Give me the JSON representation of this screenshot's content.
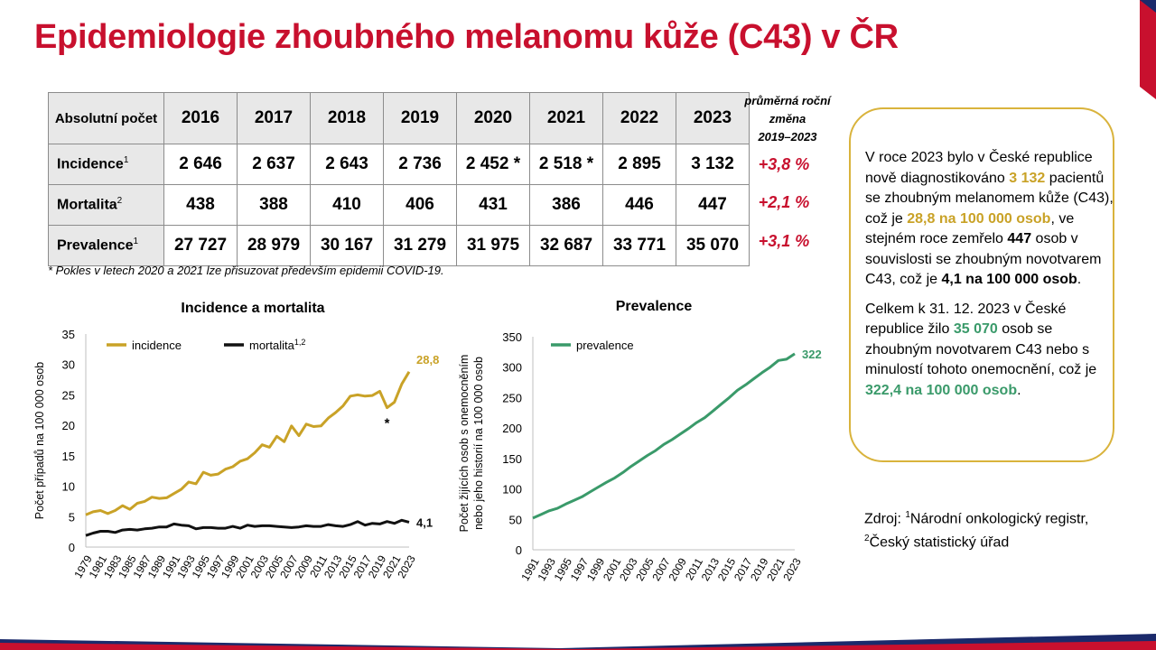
{
  "title": "Epidemiologie zhoubného melanomu kůže (C43) v ČR",
  "table": {
    "corner_label": "Absolutní počet",
    "years": [
      "2016",
      "2017",
      "2018",
      "2019",
      "2020",
      "2021",
      "2022",
      "2023"
    ],
    "rows": [
      {
        "label": "Incidence",
        "sup": "1",
        "values": [
          "2 646",
          "2 637",
          "2 643",
          "2 736",
          "2 452 *",
          "2 518 *",
          "2 895",
          "3 132"
        ]
      },
      {
        "label": "Mortalita",
        "sup": "2",
        "values": [
          "438",
          "388",
          "410",
          "406",
          "431",
          "386",
          "446",
          "447"
        ]
      },
      {
        "label": "Prevalence",
        "sup": "1",
        "values": [
          "27 727",
          "28 979",
          "30 167",
          "31 279",
          "31 975",
          "32 687",
          "33 771",
          "35 070"
        ]
      }
    ],
    "change_header": [
      "průměrná roční",
      "změna",
      "2019–2023"
    ],
    "changes": [
      "+3,8 %",
      "+2,1 %",
      "+3,1 %"
    ],
    "footnote": "* Pokles v letech 2020 a 2021 lze přisuzovat především epidemii COVID-19."
  },
  "info": {
    "p1": {
      "t1": "V roce 2023 bylo v České republice nově diagnostikováno ",
      "v1": "3 132",
      "t2": " pacientů se zhoubným melanomem kůže (C43), což je ",
      "v2": "28,8 na 100 000 osob",
      "t3": ", ve stejném roce zemřelo ",
      "v3": "447",
      "t4": " osob v souvislosti se zhoubným novotvarem C43, což je ",
      "v4": "4,1 na 100 000 osob",
      "t5": "."
    },
    "p2": {
      "t1": "Celkem k 31. 12. 2023 v České republice žilo ",
      "v1": "35 070",
      "t2": " osob se zhoubným novotvarem C43 nebo s minulostí tohoto onemocnění, což je ",
      "v2": "322,4 na 100 000 osob",
      "t3": "."
    }
  },
  "source": {
    "prefix": "Zdroj: ",
    "sup1": "1",
    "line1": "Národní onkologický registr,",
    "sup2": "2",
    "line2": "Český statistický úřad"
  },
  "colors": {
    "title": "#c8102e",
    "incidence": "#c9a227",
    "mortality": "#111111",
    "prevalence": "#3a9a6a",
    "box": "#d9b33c"
  },
  "chart_data": [
    {
      "type": "line",
      "title": "Incidence a mortalita",
      "ylabel": "Počet případů na 100 000 osob",
      "xlabel": "",
      "ylim": [
        0,
        35
      ],
      "yticks": [
        0,
        5,
        10,
        15,
        20,
        25,
        30,
        35
      ],
      "x": [
        1979,
        1980,
        1981,
        1982,
        1983,
        1984,
        1985,
        1986,
        1987,
        1988,
        1989,
        1990,
        1991,
        1992,
        1993,
        1994,
        1995,
        1996,
        1997,
        1998,
        1999,
        2000,
        2001,
        2002,
        2003,
        2004,
        2005,
        2006,
        2007,
        2008,
        2009,
        2010,
        2011,
        2012,
        2013,
        2014,
        2015,
        2016,
        2017,
        2018,
        2019,
        2020,
        2021,
        2022,
        2023
      ],
      "xtick_labels": [
        "1979",
        "1981",
        "1983",
        "1985",
        "1987",
        "1989",
        "1991",
        "1993",
        "1995",
        "1997",
        "1999",
        "2001",
        "2003",
        "2005",
        "2007",
        "2009",
        "2011",
        "2013",
        "2015",
        "2017",
        "2019",
        "2021",
        "2023"
      ],
      "series": [
        {
          "name": "incidence",
          "sup": "",
          "color": "#c9a227",
          "values": [
            5.3,
            5.8,
            6.0,
            5.5,
            6.0,
            6.8,
            6.2,
            7.2,
            7.5,
            8.2,
            8.0,
            8.1,
            8.8,
            9.5,
            10.7,
            10.4,
            12.3,
            11.8,
            12.0,
            12.8,
            13.2,
            14.1,
            14.5,
            15.5,
            16.8,
            16.4,
            18.2,
            17.3,
            19.9,
            18.3,
            20.2,
            19.8,
            19.9,
            21.2,
            22.1,
            23.2,
            24.8,
            25.0,
            24.8,
            24.9,
            25.6,
            22.9,
            23.8,
            26.8,
            28.8
          ],
          "end_label": "28,8"
        },
        {
          "name": "mortalita",
          "sup": "1,2",
          "color": "#111111",
          "values": [
            1.9,
            2.3,
            2.6,
            2.6,
            2.4,
            2.8,
            2.9,
            2.8,
            3.0,
            3.1,
            3.3,
            3.3,
            3.8,
            3.6,
            3.5,
            3.0,
            3.2,
            3.2,
            3.1,
            3.1,
            3.4,
            3.1,
            3.6,
            3.4,
            3.5,
            3.5,
            3.4,
            3.3,
            3.2,
            3.3,
            3.5,
            3.4,
            3.4,
            3.7,
            3.5,
            3.4,
            3.7,
            4.2,
            3.6,
            3.9,
            3.8,
            4.2,
            3.9,
            4.4,
            4.1
          ],
          "end_label": "4,1"
        }
      ],
      "annotations": [
        {
          "x": 2020,
          "text": "*"
        }
      ],
      "legend": "top-left",
      "grid": false
    },
    {
      "type": "line",
      "title": "Prevalence",
      "ylabel": "Počet žijících osob s onemocněním nebo jeho historií na 100 000 osob",
      "xlabel": "",
      "ylim": [
        0,
        350
      ],
      "yticks": [
        0,
        50,
        100,
        150,
        200,
        250,
        300,
        350
      ],
      "x": [
        1991,
        1992,
        1993,
        1994,
        1995,
        1996,
        1997,
        1998,
        1999,
        2000,
        2001,
        2002,
        2003,
        2004,
        2005,
        2006,
        2007,
        2008,
        2009,
        2010,
        2011,
        2012,
        2013,
        2014,
        2015,
        2016,
        2017,
        2018,
        2019,
        2020,
        2021,
        2022,
        2023
      ],
      "xtick_labels": [
        "1991",
        "1993",
        "1995",
        "1997",
        "1999",
        "2001",
        "2003",
        "2005",
        "2007",
        "2009",
        "2011",
        "2013",
        "2015",
        "2017",
        "2019",
        "2021",
        "2023"
      ],
      "series": [
        {
          "name": "prevalence",
          "sup": "",
          "color": "#3a9a6a",
          "values": [
            52,
            58,
            64,
            68,
            75,
            81,
            87,
            95,
            103,
            111,
            118,
            127,
            137,
            146,
            155,
            163,
            173,
            181,
            190,
            199,
            209,
            217,
            228,
            239,
            250,
            262,
            271,
            281,
            291,
            300,
            311,
            313,
            322
          ],
          "end_label": "322"
        }
      ],
      "legend": "top-left",
      "grid": false
    }
  ]
}
